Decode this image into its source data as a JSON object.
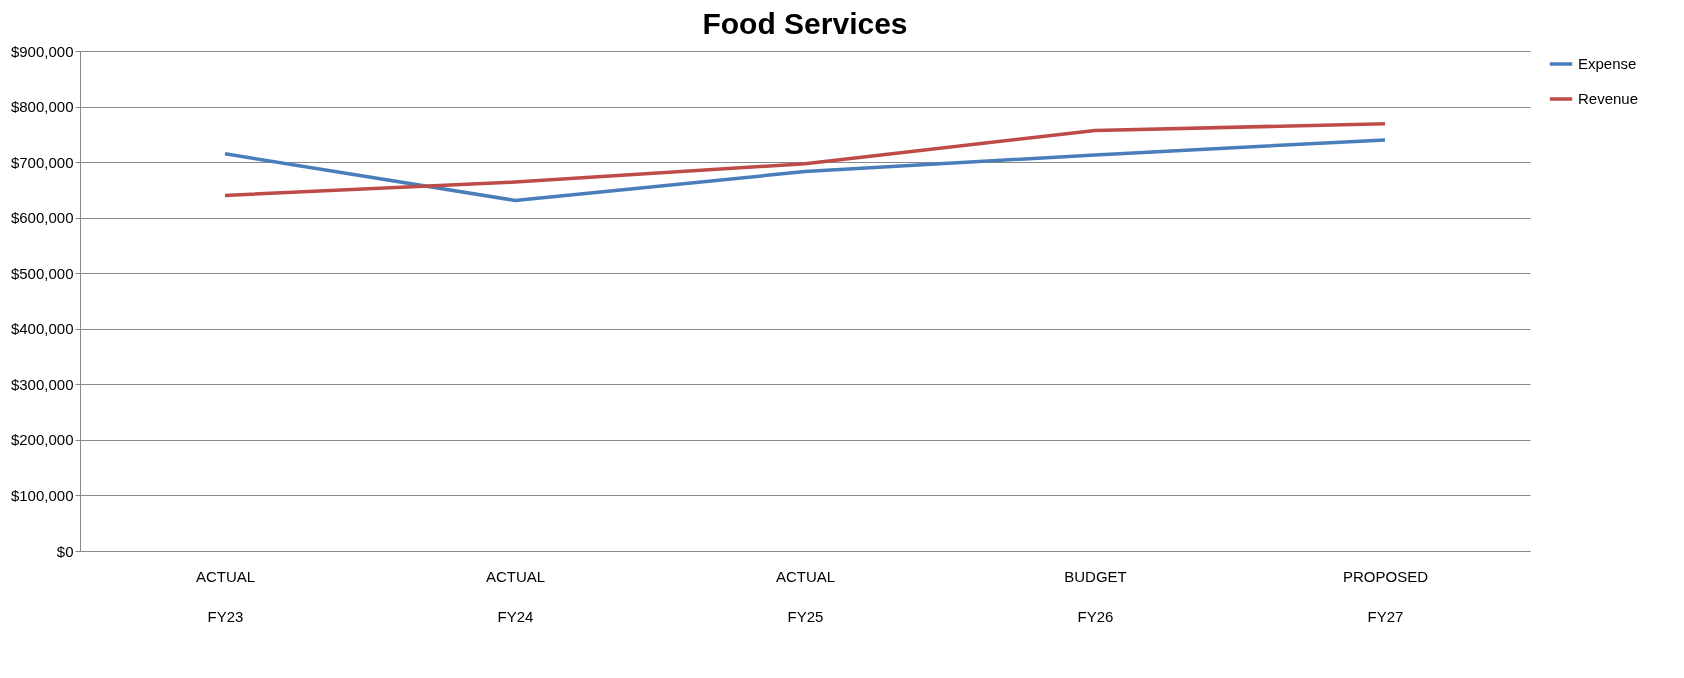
{
  "chart_data": {
    "type": "line",
    "title": "Food Services",
    "categories": [
      "ACTUAL\nFY23",
      "ACTUAL\nFY24",
      "ACTUAL\nFY25",
      "BUDGET\nFY26",
      "PROPOSED\nFY27"
    ],
    "series": [
      {
        "name": "Expense",
        "color": "#4a7ebb",
        "values": [
          715000,
          631000,
          683000,
          713000,
          740000
        ]
      },
      {
        "name": "Revenue",
        "color": "#be4b48",
        "values": [
          640000,
          664000,
          697000,
          757000,
          769000
        ]
      }
    ],
    "ylim": [
      0,
      900000
    ],
    "yticks": [
      {
        "value": 0,
        "label": "$0"
      },
      {
        "value": 100000,
        "label": "$100,000"
      },
      {
        "value": 200000,
        "label": "$200,000"
      },
      {
        "value": 300000,
        "label": "$300,000"
      },
      {
        "value": 400000,
        "label": "$400,000"
      },
      {
        "value": 500000,
        "label": "$500,000"
      },
      {
        "value": 600000,
        "label": "$600,000"
      },
      {
        "value": 700000,
        "label": "$700,000"
      },
      {
        "value": 800000,
        "label": "$800,000"
      },
      {
        "value": 900000,
        "label": "$900,000"
      }
    ],
    "grid": "y",
    "legend": "right",
    "marker": "none",
    "line_style": "solid"
  }
}
